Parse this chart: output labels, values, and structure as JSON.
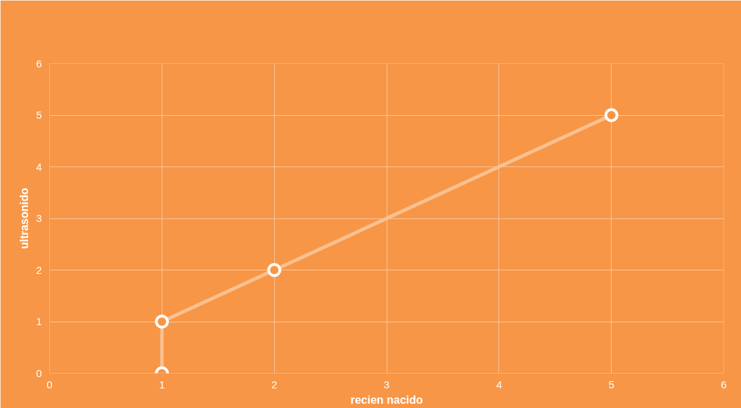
{
  "chart_data": {
    "type": "line",
    "xlabel": "recien nacido",
    "ylabel": "ultrasonido",
    "x": [
      1,
      1,
      2,
      5
    ],
    "series": [
      {
        "color": "#fac090",
        "values": [
          0,
          1,
          2,
          5
        ]
      }
    ],
    "xlim": [
      0,
      6
    ],
    "ylim": [
      0,
      6
    ],
    "xticks": [
      0,
      1,
      2,
      3,
      4,
      5,
      6
    ],
    "yticks": [
      0,
      1,
      2,
      3,
      4,
      5,
      6
    ],
    "grid": true,
    "marker": "circle",
    "line_style": "solid"
  }
}
